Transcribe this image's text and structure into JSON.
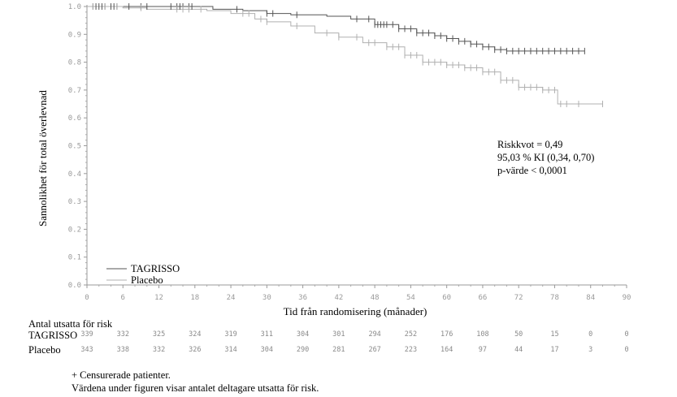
{
  "chart_data": {
    "type": "line",
    "subtype": "kaplan-meier",
    "title": "",
    "xlabel": "Tid från randomisering (månader)",
    "ylabel": "Sannolikhet för total överlevnad",
    "xlim": [
      0,
      90
    ],
    "ylim": [
      0.0,
      1.0
    ],
    "x_ticks": [
      "0",
      "6",
      "12",
      "18",
      "24",
      "30",
      "36",
      "42",
      "48",
      "54",
      "60",
      "66",
      "72",
      "78",
      "84",
      "90"
    ],
    "y_ticks": [
      "0.0",
      "0.1",
      "0.2",
      "0.3",
      "0.4",
      "0.5",
      "0.6",
      "0.7",
      "0.8",
      "0.9",
      "1.0"
    ],
    "grid": false,
    "legend_position": "bottom-left",
    "series": [
      {
        "name": "TAGRISSO",
        "color": "#555555",
        "x": [
          0,
          17,
          21,
          26,
          30,
          34,
          40,
          44,
          48,
          52,
          55,
          58,
          60,
          62,
          64,
          66,
          68,
          70,
          74,
          80,
          83
        ],
        "y": [
          1.0,
          1.0,
          0.99,
          0.985,
          0.975,
          0.97,
          0.965,
          0.955,
          0.935,
          0.92,
          0.905,
          0.895,
          0.885,
          0.875,
          0.865,
          0.855,
          0.845,
          0.84,
          0.84,
          0.84,
          0.84
        ],
        "censor_x": [
          1,
          1.5,
          2,
          2.5,
          3,
          4,
          4.5,
          5,
          7,
          9,
          10,
          14,
          15,
          15.5,
          16,
          17,
          17.5,
          25,
          30,
          31,
          35,
          45,
          47,
          48,
          48.5,
          49,
          49.5,
          50,
          51,
          52,
          53,
          54,
          55,
          56,
          57,
          58,
          59,
          60,
          61,
          62,
          63,
          64,
          65,
          66,
          67,
          68,
          69,
          70,
          71,
          72,
          73,
          74,
          75,
          76,
          77,
          78,
          79,
          80,
          81,
          82,
          83
        ]
      },
      {
        "name": "Placebo",
        "color": "#b0b0b0",
        "x": [
          0,
          6,
          10,
          15,
          20,
          24,
          28,
          30,
          34,
          38,
          42,
          46,
          50,
          53,
          56,
          60,
          63,
          66,
          69,
          72,
          76,
          78,
          78.5,
          86
        ],
        "y": [
          1.0,
          0.995,
          0.99,
          0.99,
          0.985,
          0.975,
          0.955,
          0.945,
          0.93,
          0.905,
          0.89,
          0.87,
          0.855,
          0.825,
          0.8,
          0.79,
          0.78,
          0.765,
          0.735,
          0.71,
          0.7,
          0.7,
          0.65,
          0.65
        ],
        "censor_x": [
          1,
          3,
          5,
          9,
          15,
          16,
          17,
          19,
          26,
          27,
          29,
          30,
          35,
          40,
          42,
          45,
          47,
          48,
          50,
          51,
          52,
          53,
          54,
          55,
          56,
          57,
          58,
          59,
          60,
          61,
          62,
          63,
          64,
          65,
          66,
          67,
          68,
          69,
          70,
          71,
          72,
          73,
          74,
          75,
          76,
          77,
          78,
          79,
          80,
          82,
          86
        ]
      }
    ],
    "annotations": [
      "Riskkvot = 0,49",
      "95,03 % KI (0,34, 0,70)",
      "p-värde < 0,0001"
    ],
    "risk_table": {
      "title": "Antal utsatta för risk",
      "time_points": [
        0,
        6,
        12,
        18,
        24,
        30,
        36,
        42,
        48,
        54,
        60,
        66,
        72,
        78,
        84,
        90
      ],
      "rows": [
        {
          "label": "TAGRISSO",
          "values": [
            339,
            332,
            325,
            324,
            319,
            311,
            304,
            301,
            294,
            252,
            176,
            108,
            50,
            15,
            0,
            0
          ]
        },
        {
          "label": "Placebo",
          "values": [
            343,
            338,
            332,
            326,
            314,
            304,
            290,
            281,
            267,
            223,
            164,
            97,
            44,
            17,
            3,
            0
          ]
        }
      ]
    }
  },
  "footnotes": [
    "+ Censurerade patienter.",
    "Värdena under figuren visar antalet deltagare utsatta för risk."
  ]
}
